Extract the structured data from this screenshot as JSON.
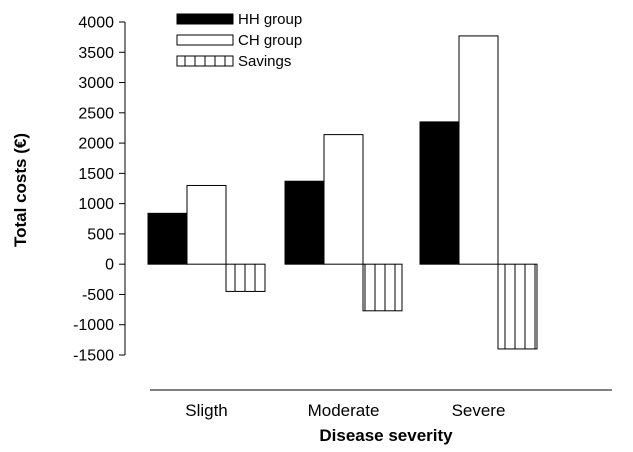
{
  "chart_data": {
    "type": "bar",
    "xlabel": "Disease severity",
    "ylabel": "Total costs (€)",
    "ylim": [
      -1500,
      4000
    ],
    "yticks": [
      4000,
      3500,
      3000,
      2500,
      2000,
      1500,
      1000,
      500,
      0,
      -500,
      -1000,
      -1500
    ],
    "ytick_labels": [
      "4000",
      "3500",
      "3000",
      "2500",
      "2000",
      "1500",
      "1000",
      "500",
      "0",
      "-500",
      "-1000",
      "-1500"
    ],
    "categories": [
      "Sligth",
      "Moderate",
      "Severe"
    ],
    "series": [
      {
        "name": "HH group",
        "values": [
          840,
          1370,
          2350
        ],
        "fill": "#000000",
        "pattern": "solid"
      },
      {
        "name": "CH group",
        "values": [
          1300,
          2140,
          3770
        ],
        "fill": "#ffffff",
        "pattern": "open"
      },
      {
        "name": "Savings",
        "values": [
          -450,
          -770,
          -1400
        ],
        "fill": "#ffffff",
        "pattern": "vertical-lines"
      }
    ],
    "legend_position": "top-left",
    "grid": false
  }
}
